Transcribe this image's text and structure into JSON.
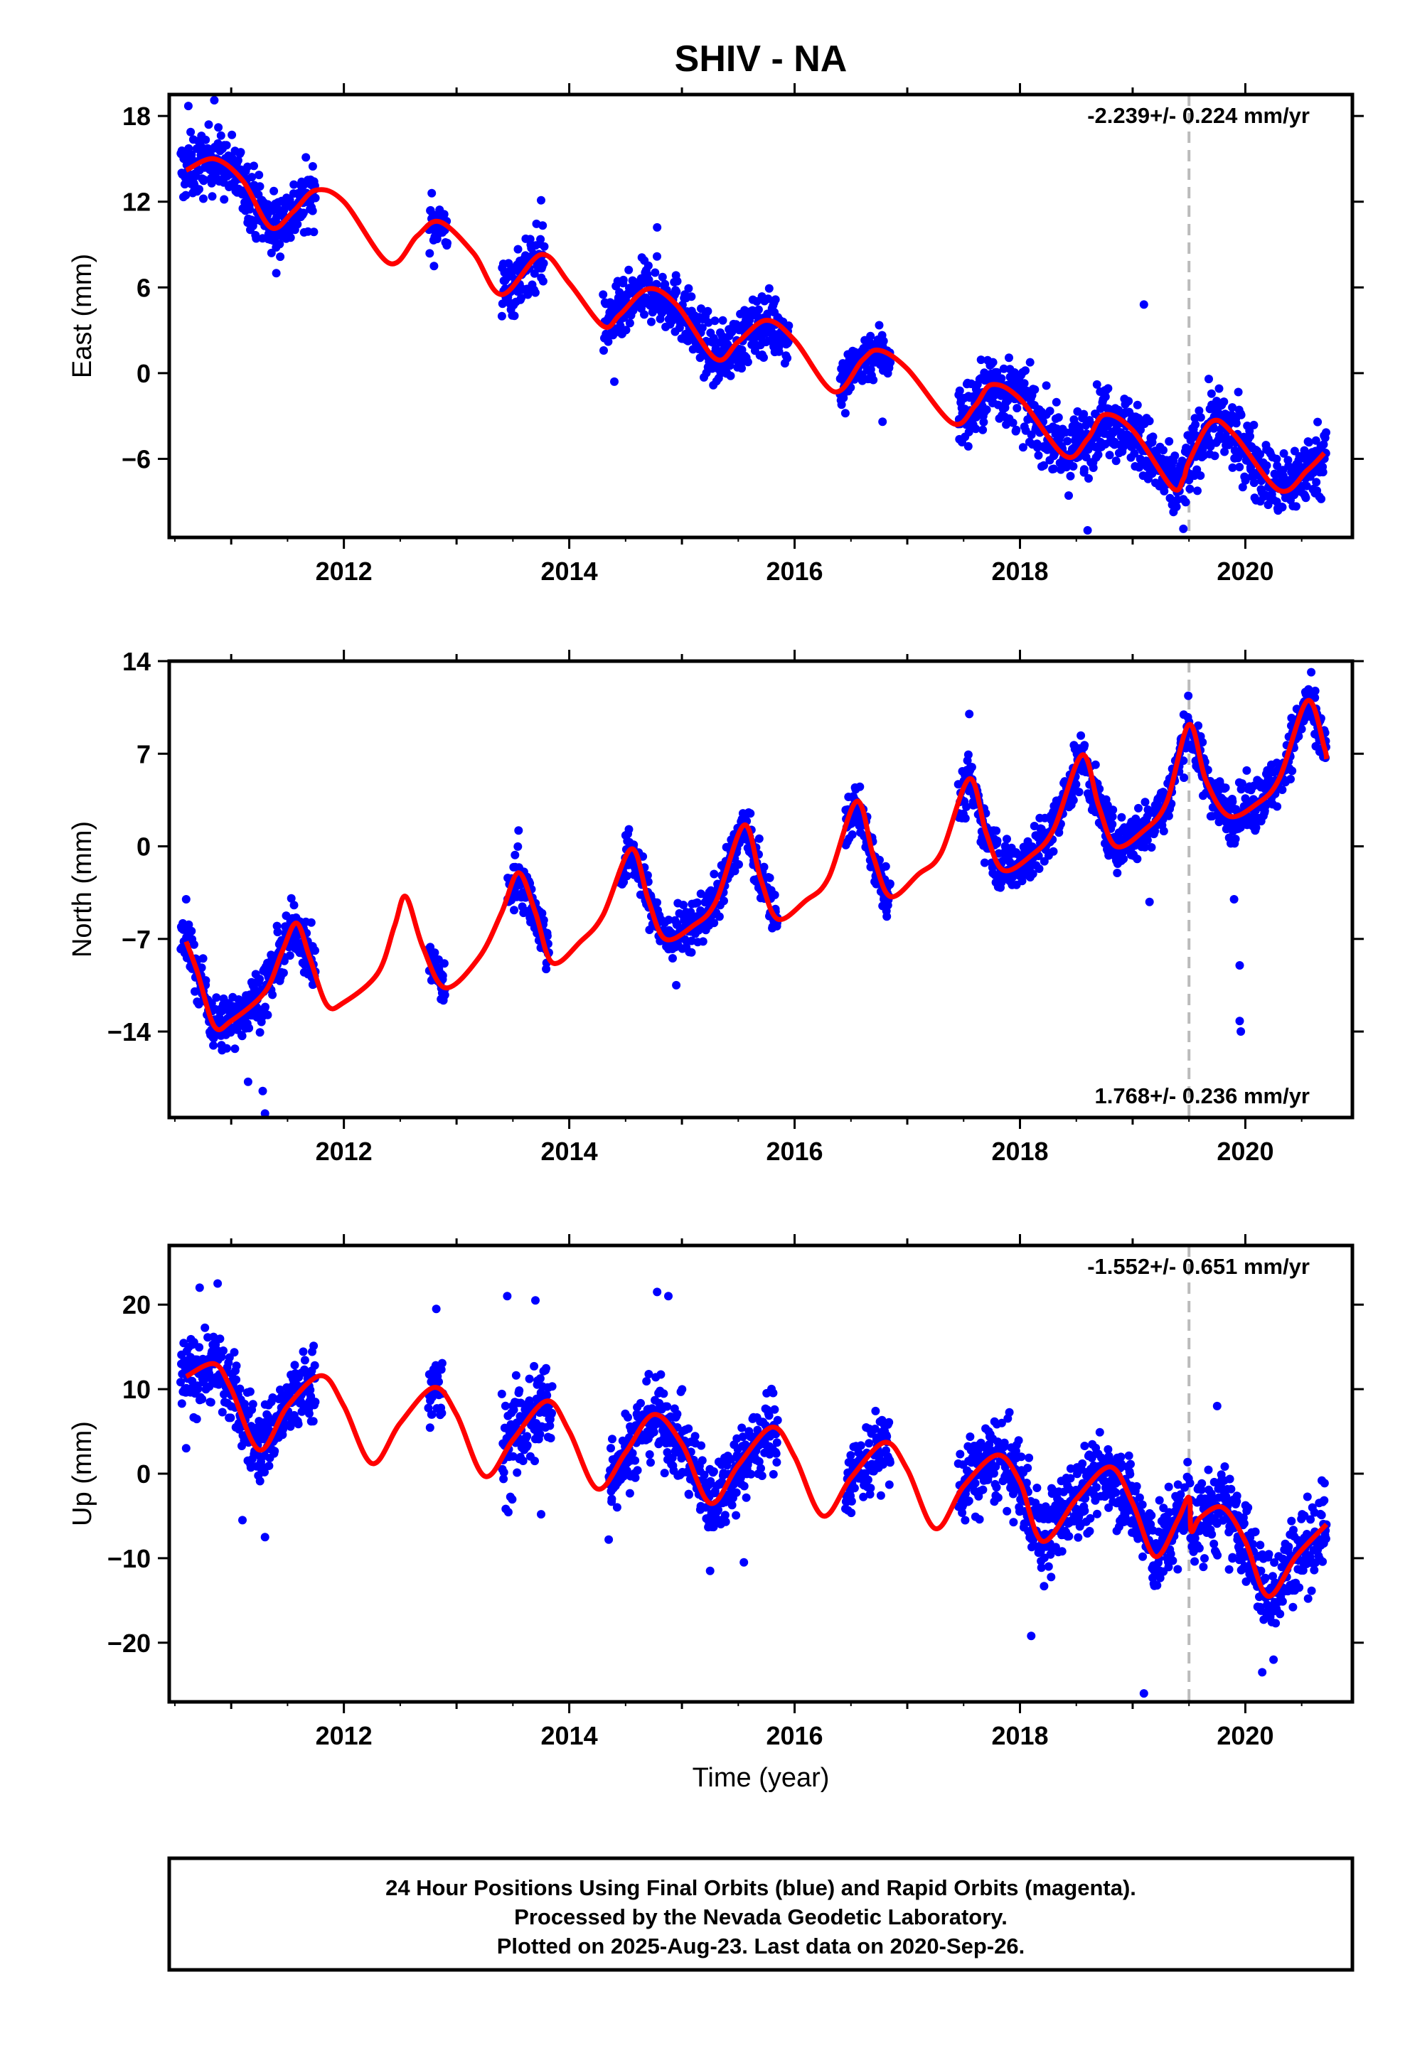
{
  "figure": {
    "title": "SHIV - NA",
    "xlabel": "Time (year)",
    "footer_lines": [
      "24 Hour Positions Using Final Orbits (blue) and Rapid Orbits (magenta).",
      "Processed by the Nevada Geodetic Laboratory.",
      "Plotted on 2025-Aug-23. Last data on 2020-Sep-26."
    ]
  },
  "colors": {
    "data_points": "#0000ff",
    "model_curve": "#ff0000",
    "marker_line": "#bbbbbb",
    "frame": "#000000"
  },
  "chart_data": [
    {
      "type": "scatter",
      "component": "east",
      "ylabel": "East (mm)",
      "rate_text": "-2.239+/- 0.224 mm/yr",
      "rate_position": "top-right",
      "xlim": [
        2010.45,
        2020.95
      ],
      "ylim": [
        -11.5,
        19.5
      ],
      "xticks": [
        2012,
        2014,
        2016,
        2018,
        2020
      ],
      "yticks": [
        18,
        12,
        6,
        0,
        -6
      ],
      "vertical_marker_x": 2019.5,
      "rate_mm_per_yr": -2.239,
      "model_points": [
        [
          2010.6,
          14.2
        ],
        [
          2010.85,
          15.0
        ],
        [
          2011.1,
          13.5
        ],
        [
          2011.35,
          10.2
        ],
        [
          2011.55,
          11.3
        ],
        [
          2011.75,
          12.8
        ],
        [
          2012.0,
          12.0
        ],
        [
          2012.4,
          7.7
        ],
        [
          2012.65,
          9.6
        ],
        [
          2012.85,
          10.6
        ],
        [
          2013.15,
          8.4
        ],
        [
          2013.4,
          5.5
        ],
        [
          2013.75,
          8.3
        ],
        [
          2014.0,
          6.3
        ],
        [
          2014.3,
          3.3
        ],
        [
          2014.45,
          4.1
        ],
        [
          2014.7,
          5.9
        ],
        [
          2014.95,
          4.8
        ],
        [
          2015.3,
          1.0
        ],
        [
          2015.5,
          2.2
        ],
        [
          2015.75,
          3.7
        ],
        [
          2016.0,
          2.3
        ],
        [
          2016.35,
          -1.3
        ],
        [
          2016.6,
          0.9
        ],
        [
          2016.75,
          1.6
        ],
        [
          2017.0,
          0.3
        ],
        [
          2017.4,
          -3.5
        ],
        [
          2017.6,
          -2.3
        ],
        [
          2017.75,
          -0.8
        ],
        [
          2018.0,
          -1.8
        ],
        [
          2018.4,
          -5.8
        ],
        [
          2018.6,
          -4.6
        ],
        [
          2018.75,
          -2.9
        ],
        [
          2019.0,
          -4.0
        ],
        [
          2019.35,
          -8.0
        ],
        [
          2019.45,
          -7.4
        ],
        [
          2019.5,
          -6.2
        ],
        [
          2019.7,
          -3.4
        ],
        [
          2019.9,
          -4.3
        ],
        [
          2020.3,
          -8.2
        ],
        [
          2020.55,
          -6.8
        ],
        [
          2020.7,
          -5.6
        ]
      ],
      "data_segments": [
        {
          "x_start": 2010.55,
          "x_end": 2011.75,
          "spread": 1.6,
          "outliers": [
            [
              2010.62,
              18.7
            ],
            [
              2010.85,
              19.1
            ],
            [
              2011.4,
              7.0
            ]
          ]
        },
        {
          "x_start": 2012.75,
          "x_end": 2012.92,
          "spread": 1.0,
          "outliers": [
            [
              2012.78,
              12.6
            ],
            [
              2012.8,
              7.5
            ]
          ]
        },
        {
          "x_start": 2013.4,
          "x_end": 2013.78,
          "spread": 1.6,
          "outliers": [
            [
              2013.75,
              12.1
            ]
          ]
        },
        {
          "x_start": 2014.3,
          "x_end": 2015.95,
          "spread": 1.5,
          "outliers": [
            [
              2014.78,
              10.2
            ],
            [
              2014.4,
              -0.6
            ]
          ]
        },
        {
          "x_start": 2016.4,
          "x_end": 2016.85,
          "spread": 1.3,
          "outliers": [
            [
              2016.45,
              -2.8
            ],
            [
              2016.78,
              -3.4
            ]
          ]
        },
        {
          "x_start": 2017.45,
          "x_end": 2020.72,
          "spread": 1.7,
          "outliers": [
            [
              2019.1,
              4.8
            ],
            [
              2018.6,
              -11.0
            ],
            [
              2019.45,
              -10.9
            ]
          ]
        }
      ]
    },
    {
      "type": "scatter",
      "component": "north",
      "ylabel": "North (mm)",
      "rate_text": "1.768+/- 0.236 mm/yr",
      "rate_position": "bottom-right",
      "xlim": [
        2010.45,
        2020.95
      ],
      "ylim": [
        -20.5,
        14.0
      ],
      "xticks": [
        2012,
        2014,
        2016,
        2018,
        2020
      ],
      "yticks": [
        14,
        7,
        0,
        -7,
        -14
      ],
      "vertical_marker_x": 2019.5,
      "rate_mm_per_yr": 1.768,
      "model_points": [
        [
          2010.6,
          -7.2
        ],
        [
          2010.7,
          -9.5
        ],
        [
          2010.85,
          -13.6
        ],
        [
          2011.0,
          -13.2
        ],
        [
          2011.3,
          -11.0
        ],
        [
          2011.45,
          -8.0
        ],
        [
          2011.58,
          -5.8
        ],
        [
          2011.7,
          -8.5
        ],
        [
          2011.85,
          -12.0
        ],
        [
          2012.0,
          -11.8
        ],
        [
          2012.3,
          -9.6
        ],
        [
          2012.45,
          -6.0
        ],
        [
          2012.55,
          -3.8
        ],
        [
          2012.7,
          -7.6
        ],
        [
          2012.9,
          -10.7
        ],
        [
          2013.2,
          -8.4
        ],
        [
          2013.4,
          -5.0
        ],
        [
          2013.55,
          -2.0
        ],
        [
          2013.7,
          -5.0
        ],
        [
          2013.85,
          -8.8
        ],
        [
          2014.1,
          -7.2
        ],
        [
          2014.3,
          -5.2
        ],
        [
          2014.55,
          -0.2
        ],
        [
          2014.7,
          -4.0
        ],
        [
          2014.85,
          -7.0
        ],
        [
          2015.1,
          -6.0
        ],
        [
          2015.3,
          -4.2
        ],
        [
          2015.55,
          1.6
        ],
        [
          2015.7,
          -2.5
        ],
        [
          2015.85,
          -5.5
        ],
        [
          2016.1,
          -4.1
        ],
        [
          2016.3,
          -2.4
        ],
        [
          2016.55,
          3.4
        ],
        [
          2016.7,
          -0.8
        ],
        [
          2016.85,
          -3.8
        ],
        [
          2017.1,
          -2.1
        ],
        [
          2017.3,
          -0.5
        ],
        [
          2017.55,
          5.1
        ],
        [
          2017.7,
          1.0
        ],
        [
          2017.85,
          -1.8
        ],
        [
          2018.1,
          -0.7
        ],
        [
          2018.3,
          1.3
        ],
        [
          2018.55,
          6.9
        ],
        [
          2018.7,
          3.0
        ],
        [
          2018.85,
          0.0
        ],
        [
          2019.1,
          1.2
        ],
        [
          2019.3,
          3.3
        ],
        [
          2019.5,
          9.2
        ],
        [
          2019.65,
          5.0
        ],
        [
          2019.85,
          2.3
        ],
        [
          2020.1,
          3.2
        ],
        [
          2020.3,
          5.1
        ],
        [
          2020.55,
          11.0
        ],
        [
          2020.7,
          7.5
        ],
        [
          2020.72,
          6.6
        ]
      ],
      "data_segments": [
        {
          "x_start": 2010.55,
          "x_end": 2011.75,
          "spread": 1.5,
          "outliers": [
            [
              2010.6,
              -4.0
            ],
            [
              2011.15,
              -17.8
            ],
            [
              2011.28,
              -18.5
            ],
            [
              2011.3,
              -20.2
            ]
          ]
        },
        {
          "x_start": 2012.75,
          "x_end": 2012.9,
          "spread": 1.2,
          "outliers": []
        },
        {
          "x_start": 2013.45,
          "x_end": 2013.82,
          "spread": 1.4,
          "outliers": [
            [
              2013.55,
              1.2
            ]
          ]
        },
        {
          "x_start": 2014.45,
          "x_end": 2015.85,
          "spread": 1.3,
          "outliers": [
            [
              2014.95,
              -10.5
            ]
          ]
        },
        {
          "x_start": 2016.45,
          "x_end": 2016.85,
          "spread": 1.3,
          "outliers": []
        },
        {
          "x_start": 2017.45,
          "x_end": 2020.72,
          "spread": 1.4,
          "outliers": [
            [
              2017.55,
              10.0
            ],
            [
              2019.15,
              -4.2
            ],
            [
              2019.9,
              -4.0
            ],
            [
              2019.95,
              -9.0
            ],
            [
              2019.95,
              -13.2
            ],
            [
              2019.96,
              -14.0
            ]
          ]
        }
      ]
    },
    {
      "type": "scatter",
      "component": "up",
      "ylabel": "Up (mm)",
      "rate_text": "-1.552+/- 0.651 mm/yr",
      "rate_position": "top-right",
      "xlim": [
        2010.45,
        2020.95
      ],
      "ylim": [
        -27,
        27
      ],
      "xticks": [
        2012,
        2014,
        2016,
        2018,
        2020
      ],
      "yticks": [
        20,
        10,
        0,
        -10,
        -20
      ],
      "vertical_marker_x": 2019.5,
      "rate_mm_per_yr": -1.552,
      "model_points": [
        [
          2010.6,
          11.5
        ],
        [
          2010.85,
          13.0
        ],
        [
          2011.0,
          10.0
        ],
        [
          2011.25,
          2.8
        ],
        [
          2011.5,
          8.0
        ],
        [
          2011.8,
          11.6
        ],
        [
          2012.0,
          8.0
        ],
        [
          2012.25,
          1.2
        ],
        [
          2012.5,
          6.0
        ],
        [
          2012.8,
          10.2
        ],
        [
          2013.0,
          7.0
        ],
        [
          2013.25,
          -0.3
        ],
        [
          2013.5,
          4.0
        ],
        [
          2013.8,
          8.6
        ],
        [
          2014.0,
          5.0
        ],
        [
          2014.25,
          -1.8
        ],
        [
          2014.5,
          2.5
        ],
        [
          2014.75,
          7.0
        ],
        [
          2015.0,
          3.5
        ],
        [
          2015.25,
          -3.5
        ],
        [
          2015.5,
          1.0
        ],
        [
          2015.8,
          5.5
        ],
        [
          2016.0,
          2.0
        ],
        [
          2016.25,
          -5.0
        ],
        [
          2016.5,
          -0.5
        ],
        [
          2016.8,
          3.7
        ],
        [
          2017.0,
          0.5
        ],
        [
          2017.25,
          -6.5
        ],
        [
          2017.5,
          -1.5
        ],
        [
          2017.8,
          2.2
        ],
        [
          2018.0,
          -1.0
        ],
        [
          2018.2,
          -8.0
        ],
        [
          2018.5,
          -3.0
        ],
        [
          2018.8,
          0.8
        ],
        [
          2019.0,
          -3.5
        ],
        [
          2019.2,
          -9.8
        ],
        [
          2019.4,
          -5.5
        ],
        [
          2019.5,
          -2.8
        ],
        [
          2019.52,
          -6.8
        ],
        [
          2019.6,
          -5.2
        ],
        [
          2019.8,
          -4.0
        ],
        [
          2020.0,
          -8.0
        ],
        [
          2020.2,
          -14.5
        ],
        [
          2020.45,
          -9.8
        ],
        [
          2020.72,
          -6.0
        ]
      ],
      "data_segments": [
        {
          "x_start": 2010.55,
          "x_end": 2011.75,
          "spread": 3.2,
          "outliers": [
            [
              2010.72,
              22.0
            ],
            [
              2010.88,
              22.5
            ],
            [
              2011.1,
              -5.5
            ],
            [
              2011.3,
              -7.5
            ],
            [
              2010.6,
              3.0
            ]
          ]
        },
        {
          "x_start": 2012.75,
          "x_end": 2012.88,
          "spread": 3.5,
          "outliers": [
            [
              2012.82,
              19.5
            ]
          ]
        },
        {
          "x_start": 2013.4,
          "x_end": 2013.85,
          "spread": 4.5,
          "outliers": [
            [
              2013.45,
              21.0
            ],
            [
              2013.7,
              20.5
            ],
            [
              2013.75,
              -4.8
            ]
          ]
        },
        {
          "x_start": 2014.35,
          "x_end": 2015.85,
          "spread": 3.3,
          "outliers": [
            [
              2014.78,
              21.5
            ],
            [
              2014.88,
              21.0
            ],
            [
              2014.35,
              -7.8
            ],
            [
              2015.25,
              -11.5
            ],
            [
              2015.55,
              -10.5
            ]
          ]
        },
        {
          "x_start": 2016.45,
          "x_end": 2016.85,
          "spread": 3.2,
          "outliers": []
        },
        {
          "x_start": 2017.45,
          "x_end": 2020.72,
          "spread": 3.6,
          "outliers": [
            [
              2018.1,
              -19.2
            ],
            [
              2019.1,
              -26.0
            ],
            [
              2020.15,
              -23.5
            ],
            [
              2020.25,
              -22.0
            ],
            [
              2019.75,
              8.0
            ]
          ]
        }
      ]
    }
  ]
}
